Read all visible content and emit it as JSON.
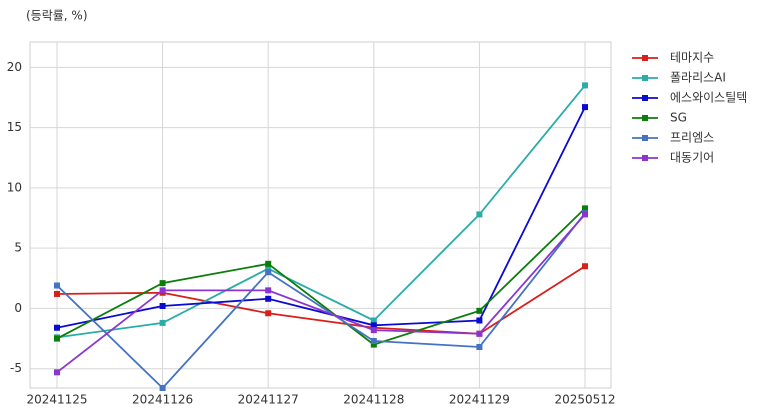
{
  "chart_data": {
    "type": "line",
    "y_axis_label": "(등락률, %)",
    "categories": [
      "20241125",
      "20241126",
      "20241127",
      "20241128",
      "20241129",
      "20250512"
    ],
    "series": [
      {
        "name": "테마지수",
        "color": "#d91f1a",
        "values": [
          1.2,
          1.3,
          -0.4,
          -1.6,
          -2.1,
          3.5
        ]
      },
      {
        "name": "폴라리스AI",
        "color": "#2aaca8",
        "values": [
          -2.4,
          -1.2,
          3.3,
          -1.0,
          7.8,
          18.5
        ]
      },
      {
        "name": "에스와이스틸텍",
        "color": "#0a0ad0",
        "values": [
          -1.6,
          0.2,
          0.8,
          -1.4,
          -1.0,
          16.7
        ]
      },
      {
        "name": "SG",
        "color": "#0b7d0b",
        "values": [
          -2.5,
          2.1,
          3.7,
          -3.0,
          -0.2,
          8.3
        ]
      },
      {
        "name": "프리엠스",
        "color": "#4472c4",
        "values": [
          1.9,
          -6.6,
          3.0,
          -2.7,
          -3.2,
          7.9
        ]
      },
      {
        "name": "대동기어",
        "color": "#8b35d0",
        "values": [
          -5.3,
          1.5,
          1.5,
          -1.8,
          -2.1,
          7.8
        ]
      }
    ],
    "ylim": [
      -6.6,
      22.1
    ],
    "yticks": [
      -5,
      0,
      5,
      10,
      15,
      20
    ],
    "grid": true,
    "legend": "outside-right"
  }
}
